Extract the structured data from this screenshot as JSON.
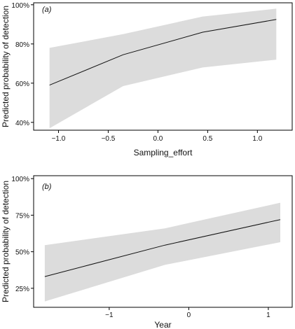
{
  "chart_data": [
    {
      "type": "line",
      "panel_label": "(a)",
      "xlabel": "Sampling_effort",
      "ylabel": "Predicted probability of detection",
      "x_ticks": [
        -1.0,
        -0.5,
        0.0,
        0.5,
        1.0
      ],
      "x_tick_labels": [
        "−1.0",
        "−0.5",
        "0.0",
        "0.5",
        "1.0"
      ],
      "y_ticks": [
        0.4,
        0.6,
        0.8,
        1.0
      ],
      "y_tick_labels": [
        "40%",
        "60%",
        "80%",
        "100%"
      ],
      "xlim": [
        -1.25,
        1.35
      ],
      "ylim": [
        0.36,
        1.01
      ],
      "grid": false,
      "series": [
        {
          "x": [
            -1.09,
            -0.35,
            0.45,
            1.19
          ],
          "y": [
            0.59,
            0.745,
            0.86,
            0.925
          ],
          "lower": [
            0.37,
            0.585,
            0.68,
            0.72
          ],
          "upper": [
            0.78,
            0.85,
            0.94,
            0.98
          ]
        }
      ]
    },
    {
      "type": "line",
      "panel_label": "(b)",
      "xlabel": "Year",
      "ylabel": "Predicted probability of detection",
      "x_ticks": [
        -1,
        0,
        1
      ],
      "x_tick_labels": [
        "−1",
        "0",
        "1"
      ],
      "y_ticks": [
        0.25,
        0.5,
        0.75,
        1.0
      ],
      "y_tick_labels": [
        "25%",
        "50%",
        "75%",
        "100%"
      ],
      "xlim": [
        -1.95,
        1.3
      ],
      "ylim": [
        0.12,
        1.02
      ],
      "grid": false,
      "series": [
        {
          "x": [
            -1.81,
            -0.3,
            1.15
          ],
          "y": [
            0.33,
            0.545,
            0.72
          ],
          "lower": [
            0.16,
            0.41,
            0.565
          ],
          "upper": [
            0.545,
            0.66,
            0.835
          ]
        }
      ]
    }
  ]
}
